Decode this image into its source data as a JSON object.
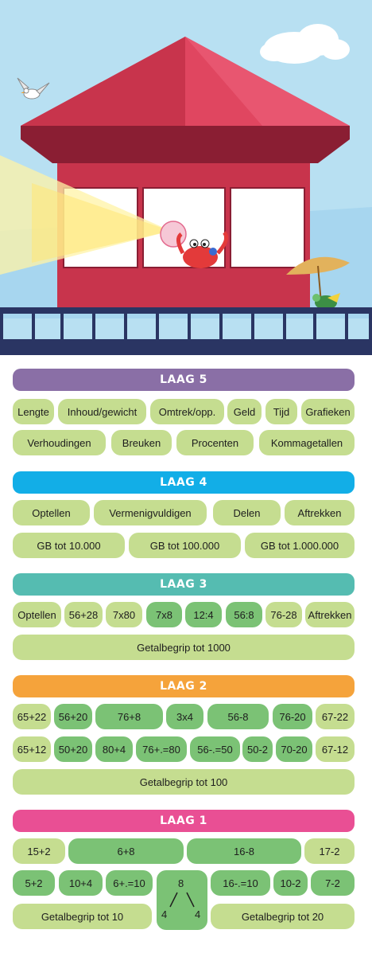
{
  "layers": [
    {
      "title": "LAAG 5",
      "color": "#8a6fa6",
      "rows": [
        [
          "Lengte",
          "Inhoud/gewicht",
          "Omtrek/opp.",
          "Geld",
          "Tijd",
          "Grafieken"
        ],
        [
          "Verhoudingen",
          "Breuken",
          "Procenten",
          "Kommagetallen"
        ]
      ]
    },
    {
      "title": "LAAG 4",
      "color": "#12aee7",
      "rows": [
        [
          "Optellen",
          "Vermenigvuldigen",
          "Delen",
          "Aftrekken"
        ],
        [
          "GB tot 10.000",
          "GB tot 100.000",
          "GB tot 1.000.000"
        ]
      ]
    },
    {
      "title": "LAAG 3",
      "color": "#55bcb1",
      "rows": [
        [
          "Optellen",
          "56+28",
          "7x80",
          "7x8",
          "12:4",
          "56:8",
          "76-28",
          "Aftrekken"
        ],
        [
          "Getalbegrip tot 1000"
        ]
      ]
    },
    {
      "title": "LAAG 2",
      "color": "#f5a33b",
      "rows": [
        [
          "65+22",
          "56+20",
          "76+8",
          "3x4",
          "56-8",
          "76-20",
          "67-22"
        ],
        [
          "65+12",
          "50+20",
          "80+4",
          "76+.=80",
          "56-.=50",
          "50-2",
          "70-20",
          "67-12"
        ],
        [
          "Getalbegrip tot 100"
        ]
      ]
    },
    {
      "title": "LAAG 1",
      "color": "#e94f94",
      "rows": [
        [
          "15+2",
          "6+8",
          "16-8",
          "17-2"
        ],
        [
          "5+2",
          "10+4",
          "6+.=10",
          "16-.=10",
          "10-2",
          "7-2"
        ],
        [
          "Getalbegrip tot 10",
          "Getalbegrip tot 20"
        ]
      ],
      "tree": {
        "top": "8",
        "left": "4",
        "right": "4"
      }
    }
  ],
  "colors": {
    "pill_light": "#c5dd90",
    "pill_dark": "#7bc275",
    "roof": "#d63a52",
    "sky": "#b8e0f2",
    "railing": "#2a3563"
  }
}
